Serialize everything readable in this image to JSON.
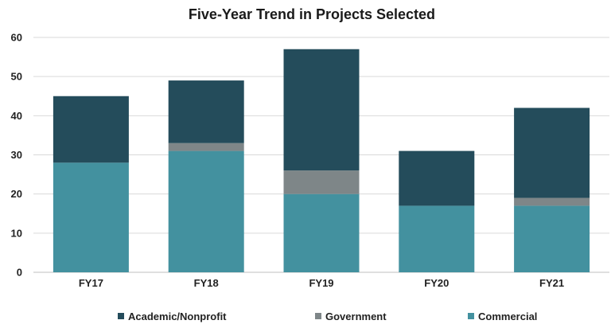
{
  "chart_data": {
    "type": "bar",
    "stacked": true,
    "title": "Five-Year Trend in Projects Selected",
    "xlabel": "",
    "ylabel": "",
    "categories": [
      "FY17",
      "FY18",
      "FY19",
      "FY20",
      "FY21"
    ],
    "ylim": [
      0,
      60
    ],
    "yticks": [
      0,
      10,
      20,
      30,
      40,
      50,
      60
    ],
    "grid": true,
    "legend_position": "bottom",
    "series": [
      {
        "name": "Commercial",
        "color": "#43919f",
        "values": [
          28,
          31,
          20,
          17,
          17
        ]
      },
      {
        "name": "Government",
        "color": "#7e8688",
        "values": [
          0,
          2,
          6,
          0,
          2
        ]
      },
      {
        "name": "Academic/Nonprofit",
        "color": "#244c5b",
        "values": [
          17,
          16,
          31,
          14,
          23
        ]
      }
    ],
    "legend_order": [
      "Academic/Nonprofit",
      "Government",
      "Commercial"
    ]
  }
}
